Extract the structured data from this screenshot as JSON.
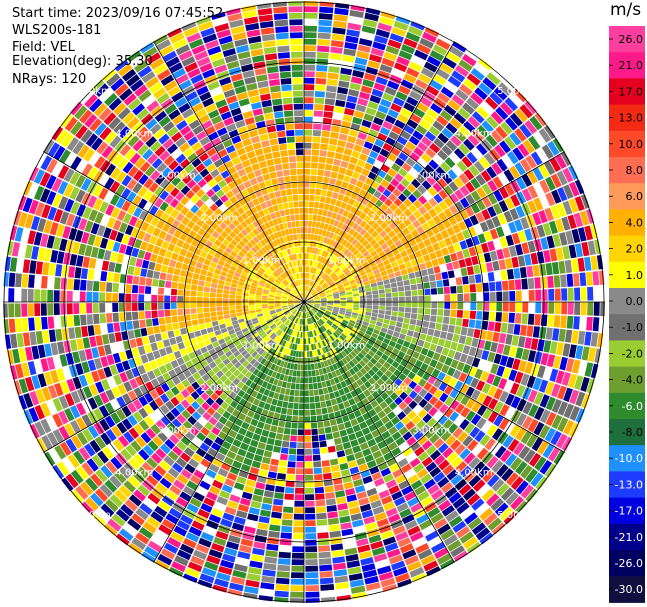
{
  "header": {
    "start_time": "Start time: 2023/09/16 07:45:52",
    "site": "WLS200s-181",
    "field": "Field: VEL",
    "elevation": "Elevation(deg): 35.30",
    "nrays": "NRays: 120"
  },
  "ppi": {
    "nrays": 120,
    "rings": [
      {
        "label": "1.00km"
      },
      {
        "label": "2.00km"
      },
      {
        "label": "3.00km"
      },
      {
        "label": "4.00km"
      },
      {
        "label": "5.00km"
      }
    ],
    "background_color": "#ffffff",
    "line_color": "#000000"
  },
  "colorbar": {
    "unit": "m/s",
    "ticks": [
      "26.0",
      "21.0",
      "17.0",
      "13.0",
      "10.0",
      "8.0",
      "6.0",
      "4.0",
      "2.0",
      "1.0",
      "0.0",
      "-1.0",
      "-2.0",
      "-4.0",
      "-6.0",
      "-8.0",
      "-10.0",
      "-13.0",
      "-17.0",
      "-21.0",
      "-26.0",
      "-30.0"
    ],
    "colors": [
      "#ff3fa0",
      "#ff1a8c",
      "#e4001e",
      "#f42a14",
      "#ff4a2a",
      "#ff6e52",
      "#ff9a5a",
      "#ffb000",
      "#ffd400",
      "#ffff00",
      "#8a8a8a",
      "#707070",
      "#9acd32",
      "#6e9e2e",
      "#2e8b2e",
      "#1e6e3e",
      "#1e90ff",
      "#1e3cff",
      "#0000e0",
      "#00008b",
      "#000060",
      "#101040"
    ]
  }
}
